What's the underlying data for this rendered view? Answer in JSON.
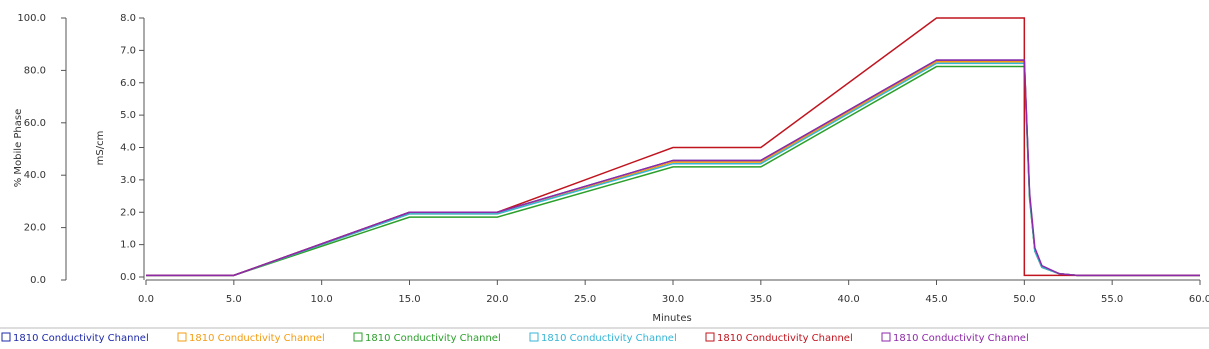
{
  "chart_data": {
    "type": "line",
    "xlabel": "Minutes",
    "ylabel": "mS/cm",
    "y2label": "% Mobile Phase",
    "x": [
      0,
      5,
      15,
      20,
      30,
      35,
      45,
      50,
      50,
      50.3,
      50.6,
      51,
      52,
      53,
      60
    ],
    "xlim": [
      0,
      60
    ],
    "xticks": [
      {
        "value": 0,
        "label": "0.0"
      },
      {
        "value": 5,
        "label": "5.0"
      },
      {
        "value": 10,
        "label": "10.0"
      },
      {
        "value": 15,
        "label": "15.0"
      },
      {
        "value": 20,
        "label": "20.0"
      },
      {
        "value": 25,
        "label": "25.0"
      },
      {
        "value": 30,
        "label": "30.0"
      },
      {
        "value": 35,
        "label": "35.0"
      },
      {
        "value": 40,
        "label": "40.0"
      },
      {
        "value": 45,
        "label": "45.0"
      },
      {
        "value": 50,
        "label": "50.0"
      },
      {
        "value": 55,
        "label": "55.0"
      },
      {
        "value": 60,
        "label": "60.0"
      }
    ],
    "ylim": [
      0,
      8
    ],
    "yticks": [
      {
        "value": 0,
        "label": "0.0"
      },
      {
        "value": 1,
        "label": "1.0"
      },
      {
        "value": 2,
        "label": "2.0"
      },
      {
        "value": 3,
        "label": "3.0"
      },
      {
        "value": 4,
        "label": "4.0"
      },
      {
        "value": 5,
        "label": "5.0"
      },
      {
        "value": 6,
        "label": "6.0"
      },
      {
        "value": 7,
        "label": "7.0"
      },
      {
        "value": 8,
        "label": "8.0"
      }
    ],
    "y2lim": [
      0,
      100
    ],
    "y2ticks": [
      {
        "value": 0,
        "label": "0.0"
      },
      {
        "value": 20,
        "label": "20.0"
      },
      {
        "value": 40,
        "label": "40.0"
      },
      {
        "value": 60,
        "label": "60.0"
      },
      {
        "value": 80,
        "label": "80.0"
      },
      {
        "value": 100,
        "label": "100.0"
      }
    ],
    "series": [
      {
        "name": "1810 Conductivity Channel",
        "color": "#1f2aa8",
        "values": [
          0.05,
          0.05,
          2.0,
          2.0,
          3.6,
          3.6,
          6.7,
          6.7,
          6.7,
          2.5,
          0.8,
          0.3,
          0.1,
          0.05,
          0.05
        ]
      },
      {
        "name": "1810 Conductivity Channel",
        "color": "#f39c12",
        "values": [
          0.05,
          0.05,
          1.95,
          1.95,
          3.55,
          3.55,
          6.65,
          6.65,
          6.65,
          2.5,
          0.8,
          0.3,
          0.1,
          0.05,
          0.05
        ]
      },
      {
        "name": "1810 Conductivity Channel",
        "color": "#2ca02c",
        "values": [
          0.05,
          0.05,
          1.85,
          1.85,
          3.4,
          3.4,
          6.5,
          6.5,
          6.5,
          2.4,
          0.8,
          0.3,
          0.1,
          0.05,
          0.05
        ]
      },
      {
        "name": "1810 Conductivity Channel",
        "color": "#35b6d6",
        "values": [
          0.05,
          0.05,
          1.95,
          1.95,
          3.5,
          3.5,
          6.6,
          6.6,
          6.6,
          2.5,
          0.8,
          0.3,
          0.1,
          0.05,
          0.05
        ]
      },
      {
        "name": "1810 Conductivity Channel",
        "color": "#c0141e",
        "values": [
          0.05,
          0.05,
          2.0,
          2.0,
          4.0,
          4.0,
          8.0,
          8.0,
          0.05,
          0.05,
          0.05,
          0.05,
          0.05,
          0.05,
          0.05
        ]
      },
      {
        "name": "1810 Conductivity Channel",
        "color": "#8e2aa8",
        "values": [
          0.05,
          0.05,
          2.0,
          2.0,
          3.6,
          3.6,
          6.7,
          6.7,
          6.7,
          2.6,
          0.9,
          0.35,
          0.1,
          0.05,
          0.05
        ]
      }
    ]
  }
}
